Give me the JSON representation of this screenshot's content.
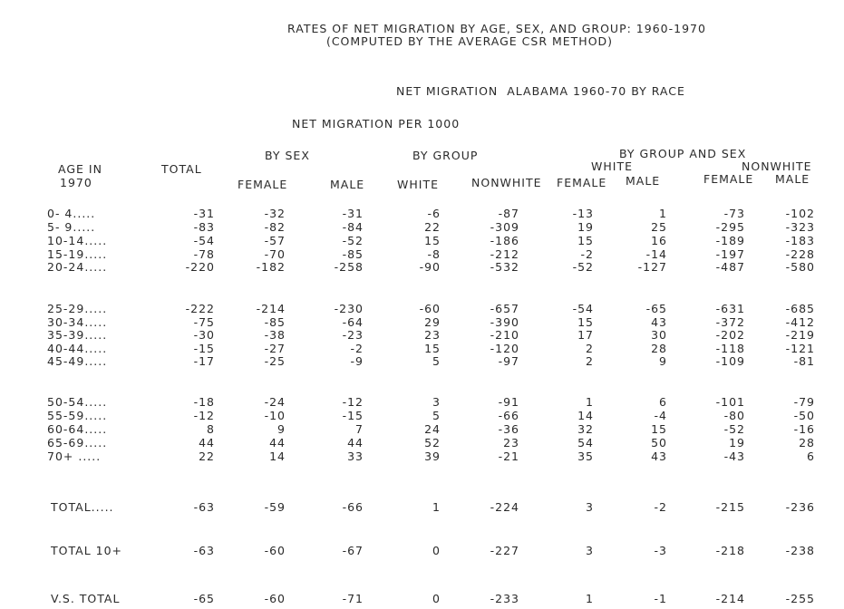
{
  "title": "RATES OF NET MIGRATION BY AGE, SEX, AND GROUP: 1960-1970",
  "subtitle": "(COMPUTED BY THE AVERAGE CSR METHOD)",
  "heading": "NET MIGRATION  ALABAMA 1960-70 BY RACE",
  "subheading": "NET MIGRATION PER 1000",
  "headers": {
    "age_line1": "AGE IN",
    "age_line2": "1970",
    "total": "TOTAL",
    "by_sex": "BY SEX",
    "by_group": "BY GROUP",
    "by_group_sex": "BY GROUP AND SEX",
    "white": "WHITE",
    "nonwhite_top": "NONWHITE",
    "female": "FEMALE",
    "male": "MALE",
    "white_col": "WHITE",
    "nonwhite_col": "NONWHITE",
    "w_female": "FEMALE",
    "w_male": "MALE",
    "nw_female": "FEMALE",
    "nw_male": "MALE"
  },
  "rows": [
    {
      "label": "0- 4.....",
      "values": [
        "-31",
        "-32",
        "-31",
        "-6",
        "-87",
        "-13",
        "1",
        "-73",
        "-102"
      ]
    },
    {
      "label": "5- 9.....",
      "values": [
        "-83",
        "-82",
        "-84",
        "22",
        "-309",
        "19",
        "25",
        "-295",
        "-323"
      ]
    },
    {
      "label": "10-14.....",
      "values": [
        "-54",
        "-57",
        "-52",
        "15",
        "-186",
        "15",
        "16",
        "-189",
        "-183"
      ]
    },
    {
      "label": "15-19.....",
      "values": [
        "-78",
        "-70",
        "-85",
        "-8",
        "-212",
        "-2",
        "-14",
        "-197",
        "-228"
      ]
    },
    {
      "label": "20-24.....",
      "values": [
        "-220",
        "-182",
        "-258",
        "-90",
        "-532",
        "-52",
        "-127",
        "-487",
        "-580"
      ]
    },
    {
      "label": "25-29.....",
      "values": [
        "-222",
        "-214",
        "-230",
        "-60",
        "-657",
        "-54",
        "-65",
        "-631",
        "-685"
      ]
    },
    {
      "label": "30-34.....",
      "values": [
        "-75",
        "-85",
        "-64",
        "29",
        "-390",
        "15",
        "43",
        "-372",
        "-412"
      ]
    },
    {
      "label": "35-39.....",
      "values": [
        "-30",
        "-38",
        "-23",
        "23",
        "-210",
        "17",
        "30",
        "-202",
        "-219"
      ]
    },
    {
      "label": "40-44.....",
      "values": [
        "-15",
        "-27",
        "-2",
        "15",
        "-120",
        "2",
        "28",
        "-118",
        "-121"
      ]
    },
    {
      "label": "45-49.....",
      "values": [
        "-17",
        "-25",
        "-9",
        "5",
        "-97",
        "2",
        "9",
        "-109",
        "-81"
      ]
    },
    {
      "label": "50-54.....",
      "values": [
        "-18",
        "-24",
        "-12",
        "3",
        "-91",
        "1",
        "6",
        "-101",
        "-79"
      ]
    },
    {
      "label": "55-59.....",
      "values": [
        "-12",
        "-10",
        "-15",
        "5",
        "-66",
        "14",
        "-4",
        "-80",
        "-50"
      ]
    },
    {
      "label": "60-64.....",
      "values": [
        "8",
        "9",
        "7",
        "24",
        "-36",
        "32",
        "15",
        "-52",
        "-16"
      ]
    },
    {
      "label": "65-69.....",
      "values": [
        "44",
        "44",
        "44",
        "52",
        "23",
        "54",
        "50",
        "19",
        "28"
      ]
    },
    {
      "label": "70+ .....",
      "values": [
        "22",
        "14",
        "33",
        "39",
        "-21",
        "35",
        "43",
        "-43",
        "6"
      ]
    }
  ],
  "totals": [
    {
      "label": "TOTAL.....",
      "values": [
        "-63",
        "-59",
        "-66",
        "1",
        "-224",
        "3",
        "-2",
        "-215",
        "-236"
      ]
    },
    {
      "label": "TOTAL 10+",
      "values": [
        "-63",
        "-60",
        "-67",
        "0",
        "-227",
        "3",
        "-3",
        "-218",
        "-238"
      ]
    },
    {
      "label": "V.S. TOTAL",
      "values": [
        "-65",
        "-60",
        "-71",
        "0",
        "-233",
        "1",
        "-1",
        "-214",
        "-255"
      ]
    }
  ]
}
